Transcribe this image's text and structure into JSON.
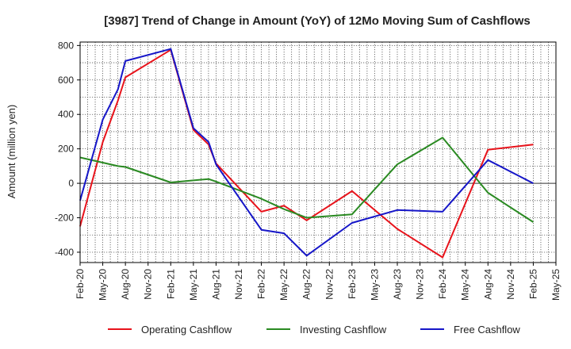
{
  "chart_data": {
    "type": "line",
    "title": "[3987]  Trend of Change in Amount (YoY) of 12Mo Moving Sum of Cashflows",
    "xlabel": "",
    "ylabel": "Amount (million yen)",
    "ylim": [
      -460,
      820
    ],
    "yticks": [
      -400,
      -200,
      0,
      200,
      400,
      600,
      800
    ],
    "ytick_labels": [
      "-400",
      "-200",
      "0",
      "200",
      "400",
      "600",
      "800"
    ],
    "x_ticks": [
      "Feb-20",
      "May-20",
      "Aug-20",
      "Nov-20",
      "Feb-21",
      "May-21",
      "Aug-21",
      "Nov-21",
      "Feb-22",
      "May-22",
      "Aug-22",
      "Nov-22",
      "Feb-23",
      "May-23",
      "Aug-23",
      "Nov-23",
      "Feb-24",
      "May-24",
      "Aug-24",
      "Nov-24",
      "Feb-25",
      "May-25"
    ],
    "grid": true,
    "legend_position": "bottom",
    "series": [
      {
        "name": "Operating Cashflow",
        "color": "#e8131b",
        "points": [
          {
            "x": 0,
            "y": -250
          },
          {
            "x": 1,
            "y": 240
          },
          {
            "x": 1.67,
            "y": 480
          },
          {
            "x": 2,
            "y": 615
          },
          {
            "x": 4,
            "y": 775
          },
          {
            "x": 5,
            "y": 310
          },
          {
            "x": 5.67,
            "y": 225
          },
          {
            "x": 6,
            "y": 115
          },
          {
            "x": 8,
            "y": -165
          },
          {
            "x": 9,
            "y": -130
          },
          {
            "x": 10,
            "y": -215
          },
          {
            "x": 12,
            "y": -45
          },
          {
            "x": 14,
            "y": -265
          },
          {
            "x": 16,
            "y": -430
          },
          {
            "x": 18,
            "y": 195
          },
          {
            "x": 20,
            "y": 225
          }
        ]
      },
      {
        "name": "Investing Cashflow",
        "color": "#2a8a22",
        "points": [
          {
            "x": 0,
            "y": 150
          },
          {
            "x": 1.67,
            "y": 100
          },
          {
            "x": 2,
            "y": 95
          },
          {
            "x": 4,
            "y": 5
          },
          {
            "x": 5.67,
            "y": 25
          },
          {
            "x": 6,
            "y": 10
          },
          {
            "x": 8,
            "y": -90
          },
          {
            "x": 9,
            "y": -150
          },
          {
            "x": 10,
            "y": -200
          },
          {
            "x": 12,
            "y": -180
          },
          {
            "x": 14,
            "y": 110
          },
          {
            "x": 16,
            "y": 265
          },
          {
            "x": 18,
            "y": -55
          },
          {
            "x": 20,
            "y": -225
          }
        ]
      },
      {
        "name": "Free Cashflow",
        "color": "#1616c8",
        "points": [
          {
            "x": 0,
            "y": -100
          },
          {
            "x": 1,
            "y": 370
          },
          {
            "x": 1.67,
            "y": 545
          },
          {
            "x": 2,
            "y": 710
          },
          {
            "x": 4,
            "y": 780
          },
          {
            "x": 5,
            "y": 320
          },
          {
            "x": 5.67,
            "y": 240
          },
          {
            "x": 6,
            "y": 110
          },
          {
            "x": 8,
            "y": -270
          },
          {
            "x": 9,
            "y": -290
          },
          {
            "x": 10,
            "y": -420
          },
          {
            "x": 12,
            "y": -230
          },
          {
            "x": 14,
            "y": -155
          },
          {
            "x": 16,
            "y": -165
          },
          {
            "x": 18,
            "y": 135
          },
          {
            "x": 20,
            "y": 0
          }
        ]
      }
    ]
  }
}
